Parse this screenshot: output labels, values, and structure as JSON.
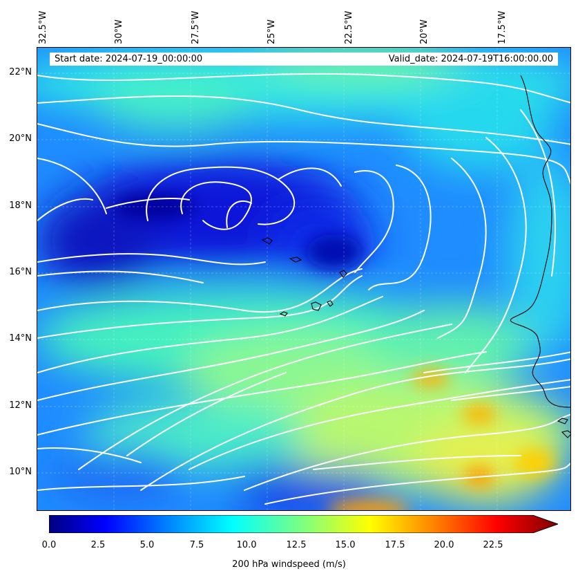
{
  "map": {
    "start_date": "Start date: 2024-07-19_00:00:00",
    "valid_date": "Valid_date: 2024-07-19T16:00:00.00",
    "lon_labels": [
      "32.5°W",
      "30°W",
      "27.5°W",
      "25°W",
      "22.5°W",
      "20°W",
      "17.5°W"
    ],
    "lat_labels": [
      "22°N",
      "20°N",
      "18°N",
      "16°N",
      "14°N",
      "12°N",
      "10°N"
    ],
    "field": "200 hPa windspeed",
    "streamline_color": "#ffffff",
    "coastline_color": "#000000",
    "extent": {
      "lon": [
        -32.5,
        -15.5
      ],
      "lat": [
        8.8,
        22.8
      ]
    }
  },
  "colorbar": {
    "label": "200 hPa windspeed (m/s)",
    "ticks": [
      "0.0",
      "2.5",
      "5.0",
      "7.5",
      "10.0",
      "12.5",
      "15.0",
      "17.5",
      "20.0",
      "22.5"
    ],
    "min": 0,
    "max": 25,
    "extend": "max",
    "colormap": "jet",
    "colors": [
      "#00007f",
      "#0000ff",
      "#007fff",
      "#00ffff",
      "#7fff7f",
      "#ffff00",
      "#ff7f00",
      "#ff0000",
      "#7f0000"
    ]
  }
}
